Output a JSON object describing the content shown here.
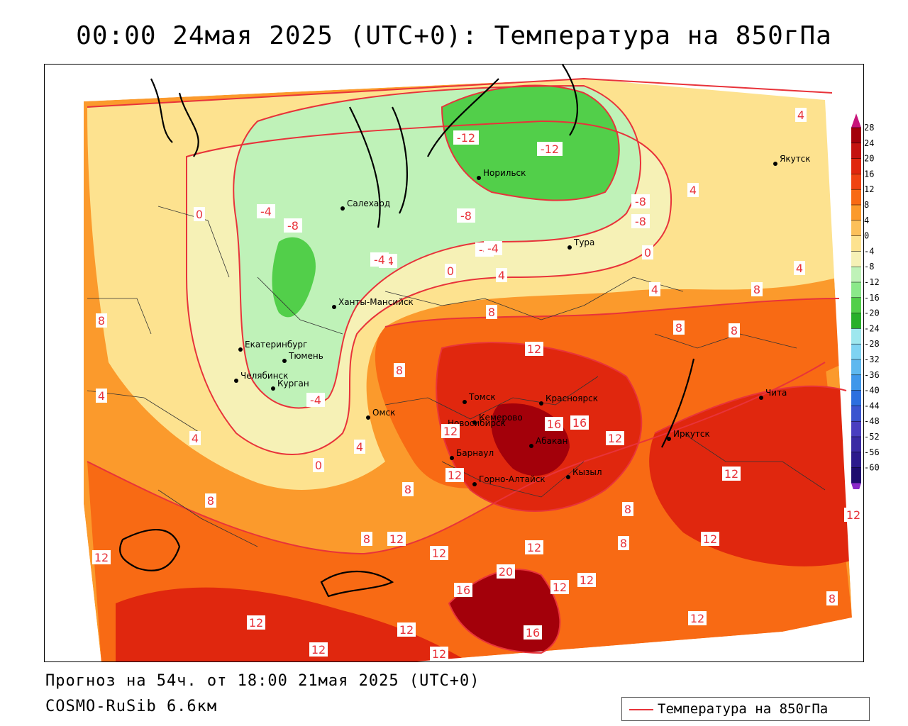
{
  "title": "00:00 24мая 2025 (UTC+0): Температура на 850гПа",
  "forecast_line": "Прогноз на 54ч. от 18:00 21мая 2025 (UTC+0)",
  "model_line": "COSMO-RuSib 6.6км",
  "legend": {
    "label": "Температура на 850гПа",
    "line_color": "#e8333a"
  },
  "colorbar": {
    "ticks": [
      "28",
      "24",
      "20",
      "16",
      "12",
      "8",
      "4",
      "0",
      "-4",
      "-8",
      "-12",
      "-16",
      "-20",
      "-24",
      "-28",
      "-32",
      "-36",
      "-40",
      "-44",
      "-48",
      "-52",
      "-56",
      "-60"
    ],
    "colors": [
      "#a3000a",
      "#c4130f",
      "#e0270e",
      "#f04412",
      "#f86a14",
      "#fb9a2c",
      "#fcc05a",
      "#fde28f",
      "#f6f1b6",
      "#bff2b8",
      "#8be88a",
      "#52cf4a",
      "#27b02a",
      "#9ee7ee",
      "#7fd3f2",
      "#5eb8ef",
      "#3f97ea",
      "#2c6fdf",
      "#3a55d0",
      "#4a3ec0",
      "#3a2aa4",
      "#2c1a8c",
      "#1e0c6e"
    ],
    "top_arrow_color": "#c8147a",
    "bottom_arrow_color": "#8a28c8"
  },
  "cities": [
    {
      "name": "Салехард"
    },
    {
      "name": "Норильск"
    },
    {
      "name": "Тура"
    },
    {
      "name": "Якутск"
    },
    {
      "name": "Ханты-Мансийск"
    },
    {
      "name": "Екатеринбург"
    },
    {
      "name": "Тюмень"
    },
    {
      "name": "Челябинск"
    },
    {
      "name": "Курган"
    },
    {
      "name": "Омск"
    },
    {
      "name": "Новосибирск"
    },
    {
      "name": "Томск"
    },
    {
      "name": "Кемерово"
    },
    {
      "name": "Красноярск"
    },
    {
      "name": "Абакан"
    },
    {
      "name": "Барнаул"
    },
    {
      "name": "Горно-Алтайск"
    },
    {
      "name": "Кызыл"
    },
    {
      "name": "Иркутск"
    },
    {
      "name": "Чита"
    }
  ],
  "isotherm_labels": [
    "-12",
    "-12",
    "-8",
    "-8",
    "-4",
    "-4",
    "-4",
    "-4",
    "-4",
    "-8",
    "-8",
    "-4",
    "0",
    "0",
    "0",
    "0",
    "4",
    "4",
    "4",
    "4",
    "4",
    "4",
    "4",
    "4",
    "8",
    "8",
    "8",
    "8",
    "8",
    "8",
    "8",
    "8",
    "8",
    "8",
    "8",
    "8",
    "12",
    "12",
    "12",
    "12",
    "12",
    "12",
    "12",
    "12",
    "12",
    "12",
    "12",
    "12",
    "12",
    "12",
    "12",
    "12",
    "12",
    "12",
    "16",
    "16",
    "16",
    "16",
    "20"
  ],
  "zones": [
    {
      "name": "cold-arctic",
      "color": "#52cf4a"
    },
    {
      "name": "cool",
      "color": "#bff2b8"
    },
    {
      "name": "near-zero",
      "color": "#f6f1b6"
    },
    {
      "name": "mild",
      "color": "#fde28f"
    },
    {
      "name": "warm",
      "color": "#fcc05a"
    },
    {
      "name": "warmer",
      "color": "#fb9a2c"
    },
    {
      "name": "hot",
      "color": "#f86a14"
    },
    {
      "name": "very-hot",
      "color": "#e0270e"
    },
    {
      "name": "hottest",
      "color": "#a3000a"
    }
  ]
}
